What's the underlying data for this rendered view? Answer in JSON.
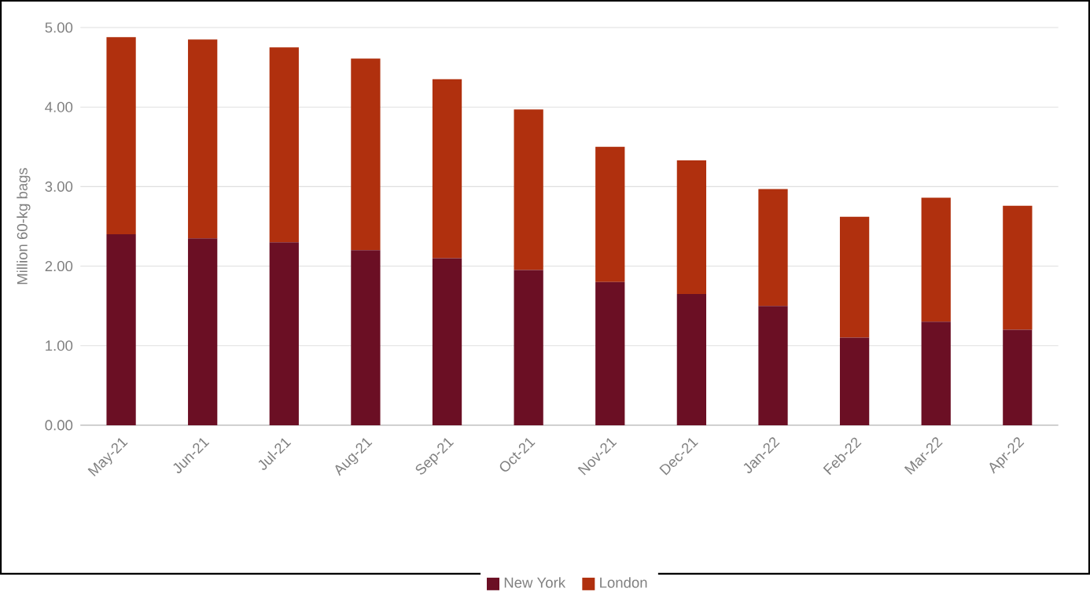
{
  "chart_data": {
    "type": "bar",
    "stacked": true,
    "ylabel": "Million 60-kg bags",
    "categories": [
      "May-21",
      "Jun-21",
      "Jul-21",
      "Aug-21",
      "Sep-21",
      "Oct-21",
      "Nov-21",
      "Dec-21",
      "Jan-22",
      "Feb-22",
      "Mar-22",
      "Apr-22"
    ],
    "series": [
      {
        "name": "New York",
        "color": "#6b0f24",
        "values": [
          2.4,
          2.35,
          2.3,
          2.2,
          2.1,
          1.95,
          1.8,
          1.65,
          1.5,
          1.1,
          1.3,
          1.2
        ]
      },
      {
        "name": "London",
        "color": "#b0300e",
        "values": [
          2.48,
          2.5,
          2.45,
          2.41,
          2.25,
          2.02,
          1.7,
          1.68,
          1.47,
          1.52,
          1.56,
          1.56
        ]
      }
    ],
    "ylim": [
      0,
      5
    ],
    "yticks": [
      {
        "value": 0,
        "label": "0.00"
      },
      {
        "value": 1,
        "label": "1.00"
      },
      {
        "value": 2,
        "label": "2.00"
      },
      {
        "value": 3,
        "label": "3.00"
      },
      {
        "value": 4,
        "label": "4.00"
      },
      {
        "value": 5,
        "label": "5.00"
      }
    ],
    "grid": "y",
    "legend": "bottom"
  }
}
